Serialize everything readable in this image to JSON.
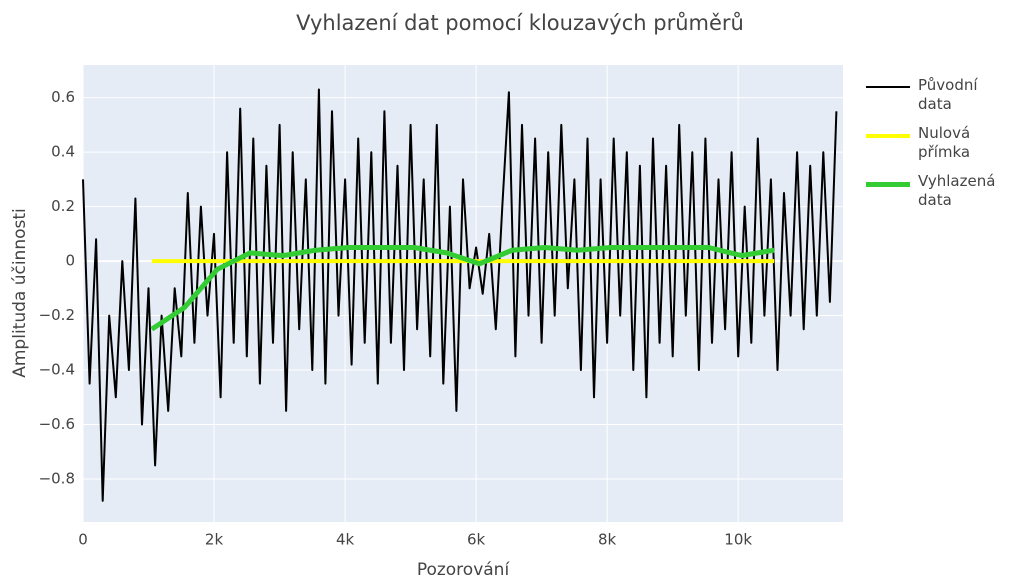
{
  "chart_data": {
    "type": "line",
    "title": "Vyhlazení dat pomocí klouzavých průměrů",
    "x_label": "Pozorování",
    "y_label": "Amplituda účinnosti",
    "xlim": [
      0,
      11600
    ],
    "ylim": [
      -0.958,
      0.72
    ],
    "xticks": [
      0,
      {
        "value": 2000,
        "label": "2k"
      },
      {
        "value": 4000,
        "label": "4k"
      },
      {
        "value": 6000,
        "label": "6k"
      },
      {
        "value": 8000,
        "label": "8k"
      },
      {
        "value": 10000,
        "label": "10k"
      }
    ],
    "yticks": [
      {
        "value": -0.8,
        "label": "−0.8"
      },
      {
        "value": -0.6,
        "label": "−0.6"
      },
      {
        "value": -0.4,
        "label": "−0.4"
      },
      {
        "value": -0.2,
        "label": "−0.2"
      },
      0,
      0.2,
      0.4,
      0.6
    ],
    "grid": true,
    "legend_position": "right",
    "series": [
      {
        "name": "Původní data",
        "color": "#000000",
        "width": 2,
        "x": [
          0,
          100,
          200,
          300,
          400,
          500,
          600,
          700,
          800,
          900,
          1000,
          1100,
          1200,
          1300,
          1400,
          1500,
          1600,
          1700,
          1800,
          1900,
          2000,
          2100,
          2200,
          2300,
          2400,
          2500,
          2600,
          2700,
          2800,
          2900,
          3000,
          3100,
          3200,
          3300,
          3400,
          3500,
          3600,
          3700,
          3800,
          3900,
          4000,
          4100,
          4200,
          4300,
          4400,
          4500,
          4600,
          4700,
          4800,
          4900,
          5000,
          5100,
          5200,
          5300,
          5400,
          5500,
          5600,
          5700,
          5800,
          5900,
          6000,
          6100,
          6200,
          6300,
          6400,
          6500,
          6600,
          6700,
          6800,
          6900,
          7000,
          7100,
          7200,
          7300,
          7400,
          7500,
          7600,
          7700,
          7800,
          7900,
          8000,
          8100,
          8200,
          8300,
          8400,
          8500,
          8600,
          8700,
          8800,
          8900,
          9000,
          9100,
          9200,
          9300,
          9400,
          9500,
          9600,
          9700,
          9800,
          9900,
          10000,
          10100,
          10200,
          10300,
          10400,
          10500,
          10600,
          10700,
          10800,
          10900,
          11000,
          11100,
          11200,
          11300,
          11400,
          11500
        ],
        "values": [
          0.3,
          -0.45,
          0.08,
          -0.88,
          -0.2,
          -0.5,
          0,
          -0.4,
          0.23,
          -0.6,
          -0.1,
          -0.75,
          -0.2,
          -0.55,
          -0.1,
          -0.35,
          0.25,
          -0.3,
          0.2,
          -0.2,
          0.1,
          -0.5,
          0.4,
          -0.3,
          0.56,
          -0.35,
          0.45,
          -0.45,
          0.35,
          -0.3,
          0.5,
          -0.55,
          0.4,
          -0.25,
          0.3,
          -0.4,
          0.63,
          -0.45,
          0.55,
          -0.2,
          0.3,
          -0.38,
          0.45,
          -0.3,
          0.4,
          -0.45,
          0.55,
          -0.3,
          0.35,
          -0.4,
          0.5,
          -0.25,
          0.3,
          -0.35,
          0.5,
          -0.45,
          0.2,
          -0.55,
          0.3,
          -0.1,
          0.05,
          -0.12,
          0.1,
          -0.25,
          0.2,
          0.62,
          -0.35,
          0.5,
          -0.2,
          0.45,
          -0.3,
          0.4,
          -0.2,
          0.5,
          -0.1,
          0.3,
          -0.4,
          0.45,
          -0.5,
          0.3,
          -0.3,
          0.45,
          -0.2,
          0.4,
          -0.4,
          0.35,
          -0.5,
          0.45,
          -0.3,
          0.35,
          -0.35,
          0.5,
          -0.2,
          0.4,
          -0.4,
          0.45,
          -0.3,
          0.3,
          -0.25,
          0.4,
          -0.35,
          0.2,
          -0.3,
          0.45,
          -0.2,
          0.3,
          -0.4,
          0.25,
          -0.2,
          0.4,
          -0.25,
          0.35,
          -0.2,
          0.4,
          -0.15,
          0.55
        ]
      },
      {
        "name": "Nulová přímka",
        "color": "#ffff00",
        "width": 4,
        "x": [
          1050,
          10550
        ],
        "values": [
          0,
          0
        ]
      },
      {
        "name": "Vyhlazená data",
        "color": "#33cc33",
        "width": 5,
        "x": [
          1050,
          1550,
          2050,
          2550,
          3050,
          3550,
          4050,
          4550,
          5050,
          5550,
          6050,
          6550,
          7050,
          7550,
          8050,
          8550,
          9050,
          9550,
          10050,
          10550
        ],
        "values": [
          -0.25,
          -0.17,
          -0.03,
          0.03,
          0.02,
          0.04,
          0.05,
          0.05,
          0.05,
          0.03,
          -0.01,
          0.04,
          0.05,
          0.04,
          0.05,
          0.05,
          0.05,
          0.05,
          0.02,
          0.04
        ]
      }
    ]
  }
}
